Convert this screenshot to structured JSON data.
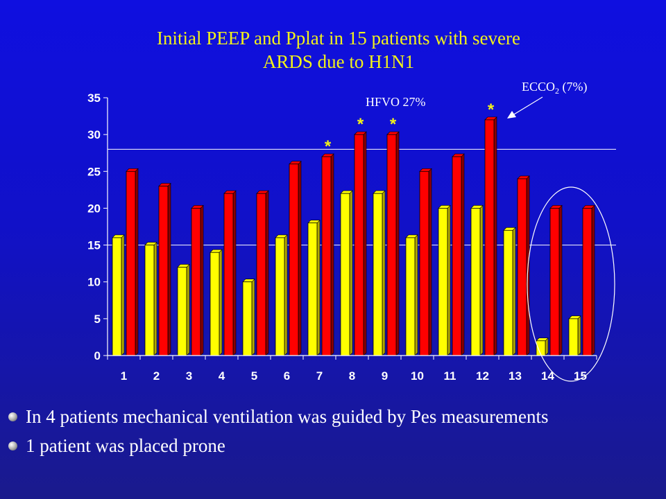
{
  "slide": {
    "title_line1": "Initial PEEP and Pplat in 15 patients with severe",
    "title_line2": "ARDS due to H1N1"
  },
  "bullets": [
    {
      "text": "In 4 patients mechanical ventilation was guided by Pes measurements",
      "icon": "sphere-bullet-icon"
    },
    {
      "text": "1 patient was placed prone",
      "icon": "sphere-bullet-icon"
    }
  ],
  "chart_data": {
    "type": "bar",
    "categories": [
      "1",
      "2",
      "3",
      "4",
      "5",
      "6",
      "7",
      "8",
      "9",
      "10",
      "11",
      "12",
      "13",
      "14",
      "15"
    ],
    "series": [
      {
        "values": [
          16,
          15,
          12,
          14,
          10,
          16,
          18,
          22,
          22,
          16,
          20,
          20,
          17,
          2,
          5
        ],
        "color": "#ffff00",
        "shade": "#b0a800"
      },
      {
        "values": [
          25,
          23,
          20,
          22,
          22,
          26,
          27,
          30,
          30,
          25,
          27,
          32,
          24,
          20,
          20
        ],
        "color": "#ff0000",
        "shade": "#8a0000"
      }
    ],
    "ylim": [
      0,
      35
    ],
    "yticks": [
      0,
      5,
      10,
      15,
      20,
      25,
      30,
      35
    ],
    "reference_lines": [
      15,
      28
    ],
    "annotations": {
      "hfvo_label": "HFVO 27%",
      "ecco2_prefix": "ECCO",
      "ecco2_subscript": "2",
      "ecco2_suffix": " (7%)",
      "asterisk": "*",
      "asterisk_categories": [
        "7",
        "8",
        "9",
        "12"
      ],
      "circled_categories": [
        "14",
        "15"
      ]
    }
  }
}
